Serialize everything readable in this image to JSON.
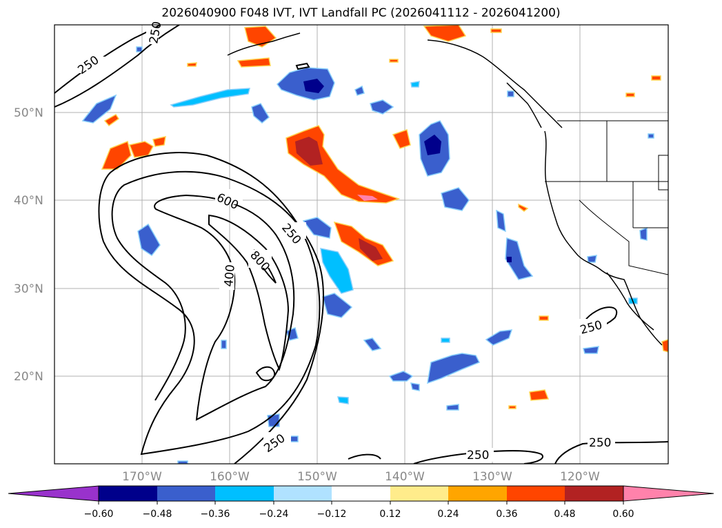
{
  "title": "2026040900 F048 IVT, IVT Landfall PC (2026041112 - 2026041200)",
  "lat_labels": [
    "50°N",
    "40°N",
    "30°N",
    "20°N"
  ],
  "lon_labels": [
    "170°W",
    "160°W",
    "150°W",
    "140°W",
    "130°W",
    "120°W"
  ],
  "contour_labels": [
    "250",
    "250",
    "600",
    "250",
    "800",
    "400",
    "250",
    "250",
    "250",
    "250"
  ],
  "colorbar": {
    "ticks": [
      "−0.60",
      "−0.48",
      "−0.36",
      "−0.24",
      "−0.12",
      "0.12",
      "0.24",
      "0.36",
      "0.48",
      "0.60"
    ],
    "colors": [
      "#9932cc",
      "#00008b",
      "#3a5fcd",
      "#00bfff",
      "#b0e2ff",
      "#ffffff",
      "#ffec8b",
      "#ffa500",
      "#ff4500",
      "#b22222",
      "#ff82ab"
    ]
  }
}
